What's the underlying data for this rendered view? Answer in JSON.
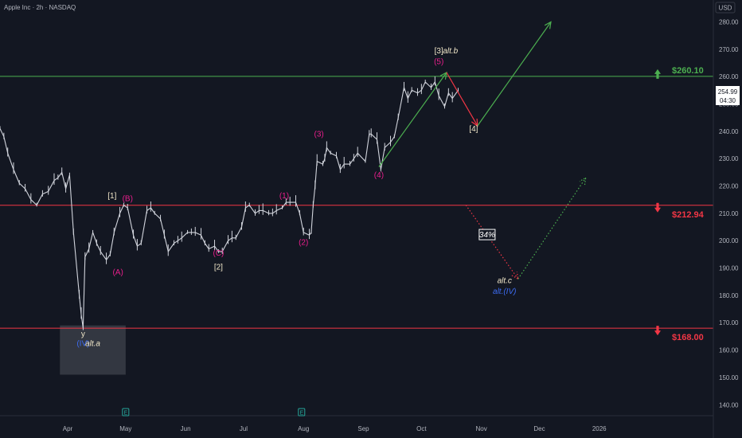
{
  "header": {
    "title": "Apple Inc · 2h · NASDAQ",
    "currency": "USD"
  },
  "price_tag": {
    "price": "254.99",
    "countdown": "04:30"
  },
  "colors": {
    "background": "#131722",
    "candle": "#d1d4dc",
    "green": "#4caf50",
    "red": "#f23645",
    "magenta": "#e91e8c",
    "cream": "#f0e6c8",
    "blue": "#3d6cf2",
    "box": "#3a3d47"
  },
  "chart_data": {
    "type": "line",
    "title": "Apple Inc · 2h · NASDAQ",
    "xlabel": "",
    "ylabel": "USD",
    "ylim": [
      136,
      288
    ],
    "y_ticks": [
      140,
      150,
      160,
      170,
      180,
      190,
      200,
      210,
      220,
      230,
      240,
      250,
      260,
      270,
      280
    ],
    "x_ticks": [
      {
        "date": "2025-04-01",
        "label": "Apr"
      },
      {
        "date": "2025-05-01",
        "label": "May"
      },
      {
        "date": "2025-06-01",
        "label": "Jun"
      },
      {
        "date": "2025-07-01",
        "label": "Jul"
      },
      {
        "date": "2025-08-01",
        "label": "Aug"
      },
      {
        "date": "2025-09-01",
        "label": "Sep"
      },
      {
        "date": "2025-10-01",
        "label": "Oct"
      },
      {
        "date": "2025-11-01",
        "label": "Nov"
      },
      {
        "date": "2025-12-01",
        "label": "Dec"
      },
      {
        "date": "2026-01-01",
        "label": "2026"
      }
    ],
    "xlim": [
      "2025-02-25",
      "2026-03-01"
    ],
    "price_series": [
      [
        "2025-02-25",
        241
      ],
      [
        "2025-02-27",
        238
      ],
      [
        "2025-03-01",
        232
      ],
      [
        "2025-03-04",
        226
      ],
      [
        "2025-03-07",
        221
      ],
      [
        "2025-03-10",
        219
      ],
      [
        "2025-03-13",
        215
      ],
      [
        "2025-03-16",
        213
      ],
      [
        "2025-03-19",
        217
      ],
      [
        "2025-03-22",
        218
      ],
      [
        "2025-03-25",
        222
      ],
      [
        "2025-03-27",
        223
      ],
      [
        "2025-03-29",
        225
      ],
      [
        "2025-03-31",
        219
      ],
      [
        "2025-04-02",
        224
      ],
      [
        "2025-04-04",
        203
      ],
      [
        "2025-04-07",
        180
      ],
      [
        "2025-04-08",
        173
      ],
      [
        "2025-04-09",
        168
      ],
      [
        "2025-04-10",
        194
      ],
      [
        "2025-04-12",
        197
      ],
      [
        "2025-04-14",
        203
      ],
      [
        "2025-04-16",
        199
      ],
      [
        "2025-04-18",
        196
      ],
      [
        "2025-04-21",
        193
      ],
      [
        "2025-04-23",
        195
      ],
      [
        "2025-04-25",
        203
      ],
      [
        "2025-04-28",
        210
      ],
      [
        "2025-04-30",
        213
      ],
      [
        "2025-05-02",
        212
      ],
      [
        "2025-05-05",
        202
      ],
      [
        "2025-05-07",
        198
      ],
      [
        "2025-05-09",
        199
      ],
      [
        "2025-05-12",
        211
      ],
      [
        "2025-05-14",
        212
      ],
      [
        "2025-05-16",
        210
      ],
      [
        "2025-05-19",
        208
      ],
      [
        "2025-05-21",
        202
      ],
      [
        "2025-05-23",
        196
      ],
      [
        "2025-05-26",
        199
      ],
      [
        "2025-05-28",
        200
      ],
      [
        "2025-05-30",
        201
      ],
      [
        "2025-06-02",
        203
      ],
      [
        "2025-06-04",
        203
      ],
      [
        "2025-06-06",
        203
      ],
      [
        "2025-06-09",
        202
      ],
      [
        "2025-06-11",
        199
      ],
      [
        "2025-06-13",
        197
      ],
      [
        "2025-06-16",
        198
      ],
      [
        "2025-06-18",
        196
      ],
      [
        "2025-06-20",
        196
      ],
      [
        "2025-06-23",
        200
      ],
      [
        "2025-06-25",
        201
      ],
      [
        "2025-06-27",
        201
      ],
      [
        "2025-06-30",
        205
      ],
      [
        "2025-07-02",
        212
      ],
      [
        "2025-07-04",
        213
      ],
      [
        "2025-07-07",
        210
      ],
      [
        "2025-07-09",
        211
      ],
      [
        "2025-07-11",
        211
      ],
      [
        "2025-07-14",
        210
      ],
      [
        "2025-07-16",
        210
      ],
      [
        "2025-07-18",
        211
      ],
      [
        "2025-07-21",
        212
      ],
      [
        "2025-07-23",
        214
      ],
      [
        "2025-07-25",
        214
      ],
      [
        "2025-07-28",
        214
      ],
      [
        "2025-07-30",
        210
      ],
      [
        "2025-08-01",
        203
      ],
      [
        "2025-08-04",
        202
      ],
      [
        "2025-08-05",
        203
      ],
      [
        "2025-08-06",
        213
      ],
      [
        "2025-08-07",
        220
      ],
      [
        "2025-08-08",
        229
      ],
      [
        "2025-08-11",
        228
      ],
      [
        "2025-08-12",
        230
      ],
      [
        "2025-08-13",
        234
      ],
      [
        "2025-08-15",
        232
      ],
      [
        "2025-08-18",
        231
      ],
      [
        "2025-08-20",
        226
      ],
      [
        "2025-08-22",
        228
      ],
      [
        "2025-08-25",
        228
      ],
      [
        "2025-08-27",
        230
      ],
      [
        "2025-08-29",
        232
      ],
      [
        "2025-09-02",
        229
      ],
      [
        "2025-09-04",
        239
      ],
      [
        "2025-09-05",
        239
      ],
      [
        "2025-09-08",
        237
      ],
      [
        "2025-09-10",
        226
      ],
      [
        "2025-09-12",
        234
      ],
      [
        "2025-09-15",
        236
      ],
      [
        "2025-09-17",
        238
      ],
      [
        "2025-09-19",
        245
      ],
      [
        "2025-09-22",
        256
      ],
      [
        "2025-09-24",
        252
      ],
      [
        "2025-09-26",
        255
      ],
      [
        "2025-09-29",
        254
      ],
      [
        "2025-10-01",
        255
      ],
      [
        "2025-10-03",
        258
      ],
      [
        "2025-10-06",
        256
      ],
      [
        "2025-10-08",
        258
      ],
      [
        "2025-10-10",
        253
      ],
      [
        "2025-10-13",
        249
      ],
      [
        "2025-10-15",
        254
      ],
      [
        "2025-10-17",
        252
      ],
      [
        "2025-10-20",
        255
      ]
    ],
    "levels": [
      {
        "price": 260.1,
        "label": "$260.10",
        "color": "#4caf50",
        "arrow": "up"
      },
      {
        "price": 212.94,
        "label": "$212.94",
        "color": "#f23645",
        "arrow": "down"
      },
      {
        "price": 168.0,
        "label": "$168.00",
        "color": "#f23645",
        "arrow": "down"
      }
    ],
    "wave_labels": [
      {
        "text": "[1]",
        "date": "2025-04-24",
        "price": 215.5,
        "color": "#f0e6c8"
      },
      {
        "text": "(A)",
        "date": "2025-04-27",
        "price": 187.5,
        "color": "#e91e8c"
      },
      {
        "text": "(B)",
        "date": "2025-05-02",
        "price": 214.5,
        "color": "#e91e8c"
      },
      {
        "text": "(C)",
        "date": "2025-06-18",
        "price": 194.5,
        "color": "#e91e8c"
      },
      {
        "text": "[2]",
        "date": "2025-06-18",
        "price": 189.5,
        "color": "#f0e6c8"
      },
      {
        "text": "(1)",
        "date": "2025-07-22",
        "price": 215.5,
        "color": "#e91e8c"
      },
      {
        "text": "(2)",
        "date": "2025-08-01",
        "price": 198.5,
        "color": "#e91e8c"
      },
      {
        "text": "(3)",
        "date": "2025-08-09",
        "price": 238.0,
        "color": "#e91e8c"
      },
      {
        "text": "(4)",
        "date": "2025-09-09",
        "price": 223.0,
        "color": "#e91e8c"
      },
      {
        "text": "(5)",
        "date": "2025-10-10",
        "price": 264.5,
        "color": "#e91e8c"
      },
      {
        "text": "[3]",
        "date": "2025-10-10",
        "price": 268.5,
        "color": "#f0e6c8"
      },
      {
        "text": "[4]",
        "date": "2025-10-28",
        "price": 240.0,
        "color": "#f0e6c8"
      },
      {
        "text": "y",
        "date": "2025-04-09",
        "price": 165.0,
        "color": "#f0e6c8"
      },
      {
        "text": "(IV)",
        "date": "2025-04-09",
        "price": 161.5,
        "color": "#3d6cf2"
      }
    ],
    "alt_labels": [
      {
        "text": "alt.a",
        "date": "2025-04-14",
        "price": 161.5,
        "color": "#f0e6c8"
      },
      {
        "text": "alt.b",
        "date": "2025-10-16",
        "price": 268.5,
        "color": "#f0e6c8"
      },
      {
        "text": "alt.c",
        "date": "2025-11-13",
        "price": 184.5,
        "color": "#f0e6c8"
      },
      {
        "text": "alt.(IV)",
        "date": "2025-11-13",
        "price": 180.5,
        "color": "#3d6cf2"
      }
    ],
    "probability_label": {
      "text": "34%",
      "date": "2025-11-04",
      "price": 201.5
    },
    "projections": [
      {
        "style": "solid",
        "color": "#4caf50",
        "from": [
          "2025-09-09",
          227
        ],
        "to": [
          "2025-10-14",
          261.5
        ]
      },
      {
        "style": "solid",
        "color": "#f23645",
        "from": [
          "2025-10-14",
          261.5
        ],
        "to": [
          "2025-10-30",
          242
        ]
      },
      {
        "style": "solid",
        "color": "#4caf50",
        "from": [
          "2025-10-30",
          242
        ],
        "to": [
          "2025-12-07",
          280
        ]
      },
      {
        "style": "dotted",
        "color": "#f23645",
        "from": [
          "2025-10-24",
          213
        ],
        "to": [
          "2025-11-20",
          186
        ]
      },
      {
        "style": "dotted",
        "color": "#4caf50",
        "from": [
          "2025-11-20",
          186
        ],
        "to": [
          "2025-12-25",
          223
        ]
      }
    ],
    "box": {
      "from": [
        "2025-03-28",
        169
      ],
      "to": [
        "2025-05-01",
        151
      ]
    },
    "earnings_markers": [
      {
        "date": "2025-05-01",
        "label": "E"
      },
      {
        "date": "2025-07-31",
        "label": "E"
      }
    ],
    "grid": false
  }
}
